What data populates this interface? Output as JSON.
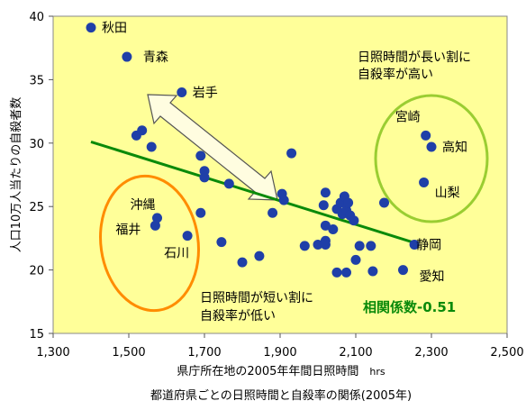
{
  "chart_data": {
    "type": "scatter",
    "xlabel": "県庁所在地の2005年年間日照時間",
    "xunit": "hrs",
    "ylabel": "人口10万人当たりの自殺者数",
    "caption": "都道府県ごとの日照時間と自殺率の関係(2005年)",
    "xlim": [
      1300,
      2500
    ],
    "ylim": [
      15,
      40
    ],
    "x_ticks": [
      "1,300",
      "1,500",
      "1,700",
      "1,900",
      "2,100",
      "2,300",
      "2,500"
    ],
    "y_ticks": [
      "15",
      "20",
      "25",
      "30",
      "35",
      "40"
    ],
    "grid": false,
    "colors": {
      "plot_background": "#ffff99",
      "points": "#1f3fa8",
      "trend": "#0a8a0a",
      "long_sun_ellipse": "#9acd32",
      "short_sun_ellipse": "#ff8c00",
      "corr_text": "#0a8a0a"
    },
    "trend_line": {
      "x": [
        1400,
        2260
      ],
      "y": [
        30.1,
        22.1
      ]
    },
    "correlation_label": "相関係数-0.51",
    "annotations": {
      "long_sun": [
        "日照時間が長い割に",
        "自殺率が高い"
      ],
      "short_sun": [
        "日照時間が短い割に",
        "自殺率が低い"
      ]
    },
    "labeled_points": [
      {
        "name": "秋田",
        "x": 1400,
        "y": 39.1
      },
      {
        "name": "青森",
        "x": 1495,
        "y": 36.8
      },
      {
        "name": "岩手",
        "x": 1640,
        "y": 34.0
      },
      {
        "name": "宮崎",
        "x": 2285,
        "y": 30.6
      },
      {
        "name": "高知",
        "x": 2300,
        "y": 29.7
      },
      {
        "name": "山梨",
        "x": 2280,
        "y": 26.9
      },
      {
        "name": "沖縄",
        "x": 1575,
        "y": 24.1
      },
      {
        "name": "福井",
        "x": 1570,
        "y": 23.5
      },
      {
        "name": "石川",
        "x": 1655,
        "y": 22.7
      },
      {
        "name": "静岡",
        "x": 2255,
        "y": 22.0
      },
      {
        "name": "愛知",
        "x": 2225,
        "y": 20.0
      }
    ],
    "other_points": [
      {
        "x": 1520,
        "y": 30.6
      },
      {
        "x": 1535,
        "y": 31.0
      },
      {
        "x": 1560,
        "y": 29.7
      },
      {
        "x": 1690,
        "y": 29.0
      },
      {
        "x": 1700,
        "y": 27.3
      },
      {
        "x": 1700,
        "y": 27.8
      },
      {
        "x": 1765,
        "y": 26.8
      },
      {
        "x": 1690,
        "y": 24.5
      },
      {
        "x": 1745,
        "y": 22.2
      },
      {
        "x": 1800,
        "y": 20.6
      },
      {
        "x": 1845,
        "y": 21.1
      },
      {
        "x": 1880,
        "y": 24.5
      },
      {
        "x": 1905,
        "y": 26.0
      },
      {
        "x": 1910,
        "y": 25.5
      },
      {
        "x": 1930,
        "y": 29.2
      },
      {
        "x": 1965,
        "y": 21.9
      },
      {
        "x": 2000,
        "y": 22.0
      },
      {
        "x": 2015,
        "y": 25.1
      },
      {
        "x": 2020,
        "y": 26.1
      },
      {
        "x": 2020,
        "y": 23.5
      },
      {
        "x": 2020,
        "y": 22.3
      },
      {
        "x": 2020,
        "y": 22.0
      },
      {
        "x": 2040,
        "y": 23.2
      },
      {
        "x": 2050,
        "y": 24.8
      },
      {
        "x": 2050,
        "y": 19.8
      },
      {
        "x": 2060,
        "y": 25.3
      },
      {
        "x": 2065,
        "y": 24.4
      },
      {
        "x": 2070,
        "y": 25.8
      },
      {
        "x": 2075,
        "y": 24.7
      },
      {
        "x": 2075,
        "y": 19.8
      },
      {
        "x": 2080,
        "y": 25.3
      },
      {
        "x": 2085,
        "y": 24.3
      },
      {
        "x": 2095,
        "y": 23.9
      },
      {
        "x": 2100,
        "y": 20.8
      },
      {
        "x": 2110,
        "y": 21.9
      },
      {
        "x": 2140,
        "y": 21.9
      },
      {
        "x": 2145,
        "y": 19.9
      },
      {
        "x": 2175,
        "y": 25.3
      }
    ]
  }
}
